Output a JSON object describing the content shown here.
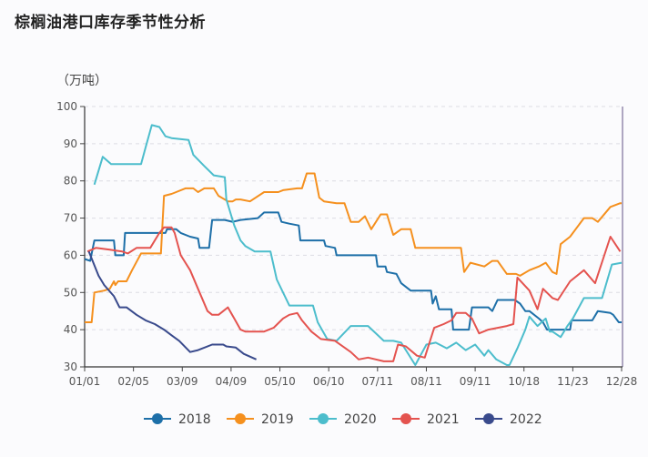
{
  "chart_data": {
    "type": "line",
    "title": "棕榈油港口库存季节性分析",
    "ylabel": "（万吨）",
    "ylim": [
      30,
      100
    ],
    "yticks": [
      30,
      40,
      50,
      60,
      70,
      80,
      90,
      100
    ],
    "xticks": [
      "01/01",
      "02/05",
      "03/09",
      "04/09",
      "05/10",
      "06/10",
      "07/11",
      "08/11",
      "09/11",
      "10/18",
      "11/23",
      "12/28"
    ],
    "grid": "horizontal-dashed",
    "legend": "bottom",
    "series": [
      {
        "name": "2018",
        "color": "#1d6fa8",
        "points": [
          [
            "01/01",
            59
          ],
          [
            "01/05",
            58.5
          ],
          [
            "01/08",
            64
          ],
          [
            "01/22",
            64
          ],
          [
            "01/23",
            60
          ],
          [
            "01/29",
            60
          ],
          [
            "01/30",
            66
          ],
          [
            "02/26",
            66
          ],
          [
            "02/27",
            67
          ],
          [
            "03/05",
            67
          ],
          [
            "03/08",
            66
          ],
          [
            "03/14",
            65
          ],
          [
            "03/19",
            64.5
          ],
          [
            "03/20",
            62
          ],
          [
            "03/26",
            62
          ],
          [
            "03/28",
            69.5
          ],
          [
            "04/05",
            69.5
          ],
          [
            "04/10",
            69
          ],
          [
            "04/15",
            69.5
          ],
          [
            "04/26",
            70
          ],
          [
            "04/30",
            71.5
          ],
          [
            "05/09",
            71.5
          ],
          [
            "05/11",
            69
          ],
          [
            "05/16",
            68.5
          ],
          [
            "05/22",
            68
          ],
          [
            "05/23",
            64
          ],
          [
            "06/07",
            64
          ],
          [
            "06/08",
            62.5
          ],
          [
            "06/14",
            62
          ],
          [
            "06/15",
            60
          ],
          [
            "07/10",
            60
          ],
          [
            "07/11",
            57
          ],
          [
            "07/16",
            57
          ],
          [
            "07/17",
            55.5
          ],
          [
            "07/23",
            55
          ],
          [
            "07/26",
            52.5
          ],
          [
            "08/01",
            50.5
          ],
          [
            "08/14",
            50.5
          ],
          [
            "08/15",
            47
          ],
          [
            "08/17",
            49
          ],
          [
            "08/19",
            45.5
          ],
          [
            "08/27",
            45.5
          ],
          [
            "08/28",
            40
          ],
          [
            "09/07",
            40
          ],
          [
            "09/09",
            46
          ],
          [
            "09/21",
            46
          ],
          [
            "09/24",
            45
          ],
          [
            "09/28",
            48
          ],
          [
            "10/11",
            48
          ],
          [
            "10/15",
            47
          ],
          [
            "10/19",
            45
          ],
          [
            "10/22",
            45
          ],
          [
            "10/29",
            43
          ],
          [
            "11/01",
            42
          ],
          [
            "11/04",
            40
          ],
          [
            "11/21",
            40
          ],
          [
            "11/22",
            42.5
          ],
          [
            "12/07",
            42.5
          ],
          [
            "12/11",
            45
          ],
          [
            "12/20",
            44.5
          ],
          [
            "12/22",
            44
          ],
          [
            "12/26",
            42
          ],
          [
            "12/28",
            42
          ]
        ]
      },
      {
        "name": "2019",
        "color": "#f5901e",
        "points": [
          [
            "01/01",
            42
          ],
          [
            "01/06",
            42
          ],
          [
            "01/08",
            50
          ],
          [
            "01/15",
            50.5
          ],
          [
            "01/19",
            51
          ],
          [
            "01/22",
            53
          ],
          [
            "01/23",
            52
          ],
          [
            "01/25",
            53
          ],
          [
            "01/31",
            53
          ],
          [
            "02/04",
            56
          ],
          [
            "02/10",
            60.5
          ],
          [
            "02/23",
            60.5
          ],
          [
            "02/25",
            76
          ],
          [
            "03/02",
            76.5
          ],
          [
            "03/05",
            77
          ],
          [
            "03/11",
            78
          ],
          [
            "03/16",
            78
          ],
          [
            "03/19",
            77
          ],
          [
            "03/23",
            78
          ],
          [
            "03/29",
            78
          ],
          [
            "04/01",
            76
          ],
          [
            "04/07",
            74.5
          ],
          [
            "04/10",
            74.5
          ],
          [
            "04/12",
            75
          ],
          [
            "04/15",
            75
          ],
          [
            "04/21",
            74.5
          ],
          [
            "04/30",
            77
          ],
          [
            "05/09",
            77
          ],
          [
            "05/12",
            77.5
          ],
          [
            "05/21",
            78
          ],
          [
            "05/24",
            78
          ],
          [
            "05/27",
            82
          ],
          [
            "06/01",
            82
          ],
          [
            "06/04",
            75.5
          ],
          [
            "06/07",
            74.5
          ],
          [
            "06/15",
            74
          ],
          [
            "06/20",
            74
          ],
          [
            "06/24",
            69
          ],
          [
            "06/29",
            69
          ],
          [
            "07/03",
            70.5
          ],
          [
            "07/07",
            67
          ],
          [
            "07/13",
            71
          ],
          [
            "07/17",
            71
          ],
          [
            "07/21",
            65.5
          ],
          [
            "07/26",
            67
          ],
          [
            "08/01",
            67
          ],
          [
            "08/04",
            62
          ],
          [
            "09/02",
            62
          ],
          [
            "09/04",
            55.5
          ],
          [
            "09/08",
            58
          ],
          [
            "09/18",
            57
          ],
          [
            "09/24",
            58.5
          ],
          [
            "09/28",
            58.5
          ],
          [
            "10/05",
            55
          ],
          [
            "10/12",
            55
          ],
          [
            "10/15",
            54.5
          ],
          [
            "10/22",
            56
          ],
          [
            "10/29",
            57
          ],
          [
            "11/03",
            58
          ],
          [
            "11/08",
            55.5
          ],
          [
            "11/11",
            55
          ],
          [
            "11/14",
            63
          ],
          [
            "11/21",
            65
          ],
          [
            "12/01",
            70
          ],
          [
            "12/07",
            70
          ],
          [
            "12/11",
            69
          ],
          [
            "12/20",
            73
          ],
          [
            "12/27",
            74
          ],
          [
            "12/28",
            74
          ]
        ]
      },
      {
        "name": "2020",
        "color": "#4cbdcc",
        "points": [
          [
            "01/08",
            79
          ],
          [
            "01/14",
            86.5
          ],
          [
            "01/20",
            84.5
          ],
          [
            "02/10",
            84.5
          ],
          [
            "02/13",
            89
          ],
          [
            "02/17",
            95
          ],
          [
            "02/22",
            94.5
          ],
          [
            "02/26",
            92
          ],
          [
            "03/02",
            91.5
          ],
          [
            "03/13",
            91
          ],
          [
            "03/16",
            87
          ],
          [
            "03/23",
            84
          ],
          [
            "03/29",
            81.5
          ],
          [
            "04/05",
            81
          ],
          [
            "04/06",
            75
          ],
          [
            "04/11",
            68
          ],
          [
            "04/15",
            64
          ],
          [
            "04/18",
            62.5
          ],
          [
            "04/24",
            61
          ],
          [
            "05/04",
            61
          ],
          [
            "05/08",
            53.5
          ],
          [
            "05/16",
            46.5
          ],
          [
            "05/31",
            46.5
          ],
          [
            "06/03",
            42
          ],
          [
            "06/09",
            37.5
          ],
          [
            "06/15",
            37
          ],
          [
            "06/24",
            41
          ],
          [
            "07/05",
            41
          ],
          [
            "07/15",
            37
          ],
          [
            "07/21",
            37
          ],
          [
            "07/26",
            36.5
          ],
          [
            "08/04",
            30.5
          ],
          [
            "08/11",
            36
          ],
          [
            "08/17",
            36.5
          ],
          [
            "08/24",
            35
          ],
          [
            "08/30",
            36.5
          ],
          [
            "09/05",
            34.5
          ],
          [
            "09/11",
            36
          ],
          [
            "09/18",
            33
          ],
          [
            "09/21",
            34.5
          ],
          [
            "09/27",
            32
          ],
          [
            "10/05",
            30.5
          ],
          [
            "10/07",
            30.5
          ],
          [
            "10/13",
            35
          ],
          [
            "10/19",
            40
          ],
          [
            "10/22",
            43.5
          ],
          [
            "10/28",
            41
          ],
          [
            "11/03",
            43
          ],
          [
            "11/06",
            39.5
          ],
          [
            "11/08",
            39.5
          ],
          [
            "11/14",
            38
          ],
          [
            "11/19",
            41
          ],
          [
            "11/23",
            43
          ],
          [
            "12/01",
            48.5
          ],
          [
            "12/14",
            48.5
          ],
          [
            "12/21",
            57.5
          ],
          [
            "12/28",
            58
          ]
        ]
      },
      {
        "name": "2021",
        "color": "#e4534f",
        "points": [
          [
            "01/03",
            61
          ],
          [
            "01/09",
            62
          ],
          [
            "01/19",
            61.5
          ],
          [
            "01/28",
            61
          ],
          [
            "02/01",
            60.5
          ],
          [
            "02/07",
            62
          ],
          [
            "02/16",
            62
          ],
          [
            "02/22",
            66
          ],
          [
            "02/25",
            67.5
          ],
          [
            "03/02",
            67.5
          ],
          [
            "03/04",
            66
          ],
          [
            "03/08",
            60
          ],
          [
            "03/14",
            56
          ],
          [
            "03/20",
            50
          ],
          [
            "03/25",
            45
          ],
          [
            "03/28",
            44
          ],
          [
            "04/01",
            44
          ],
          [
            "04/04",
            45
          ],
          [
            "04/07",
            46
          ],
          [
            "04/11",
            43
          ],
          [
            "04/15",
            40
          ],
          [
            "04/18",
            39.5
          ],
          [
            "04/30",
            39.5
          ],
          [
            "05/06",
            40.5
          ],
          [
            "05/12",
            43
          ],
          [
            "05/16",
            44
          ],
          [
            "05/21",
            44.5
          ],
          [
            "05/24",
            42.5
          ],
          [
            "05/30",
            39.5
          ],
          [
            "06/05",
            37.5
          ],
          [
            "06/14",
            37
          ],
          [
            "06/24",
            34
          ],
          [
            "06/29",
            32
          ],
          [
            "07/05",
            32.5
          ],
          [
            "07/15",
            31.5
          ],
          [
            "07/21",
            31.5
          ],
          [
            "07/24",
            36
          ],
          [
            "07/29",
            35.5
          ],
          [
            "08/05",
            33
          ],
          [
            "08/10",
            32.5
          ],
          [
            "08/16",
            40.5
          ],
          [
            "08/22",
            41.5
          ],
          [
            "08/27",
            42.5
          ],
          [
            "08/30",
            44.5
          ],
          [
            "09/05",
            44.5
          ],
          [
            "09/09",
            43
          ],
          [
            "09/14",
            39
          ],
          [
            "09/21",
            40
          ],
          [
            "10/05",
            41
          ],
          [
            "10/10",
            41.5
          ],
          [
            "10/13",
            54
          ],
          [
            "10/22",
            50.5
          ],
          [
            "10/28",
            45.5
          ],
          [
            "11/01",
            51
          ],
          [
            "11/08",
            48.5
          ],
          [
            "11/12",
            48
          ],
          [
            "11/21",
            53
          ],
          [
            "12/01",
            56
          ],
          [
            "12/09",
            52.5
          ],
          [
            "12/20",
            65
          ],
          [
            "12/27",
            61
          ]
        ]
      },
      {
        "name": "2022",
        "color": "#394a8c",
        "points": [
          [
            "01/04",
            61
          ],
          [
            "01/11",
            54.5
          ],
          [
            "01/15",
            52
          ],
          [
            "01/22",
            49
          ],
          [
            "01/26",
            46
          ],
          [
            "01/31",
            46
          ],
          [
            "02/07",
            44
          ],
          [
            "02/13",
            42.5
          ],
          [
            "02/19",
            41.5
          ],
          [
            "02/25",
            40
          ],
          [
            "03/02",
            38.5
          ],
          [
            "03/07",
            37
          ],
          [
            "03/14",
            34
          ],
          [
            "03/19",
            34.5
          ],
          [
            "03/28",
            36
          ],
          [
            "04/04",
            36
          ],
          [
            "04/06",
            35.5
          ],
          [
            "04/12",
            35.2
          ],
          [
            "04/17",
            33.5
          ],
          [
            "04/25",
            32
          ]
        ]
      }
    ]
  }
}
